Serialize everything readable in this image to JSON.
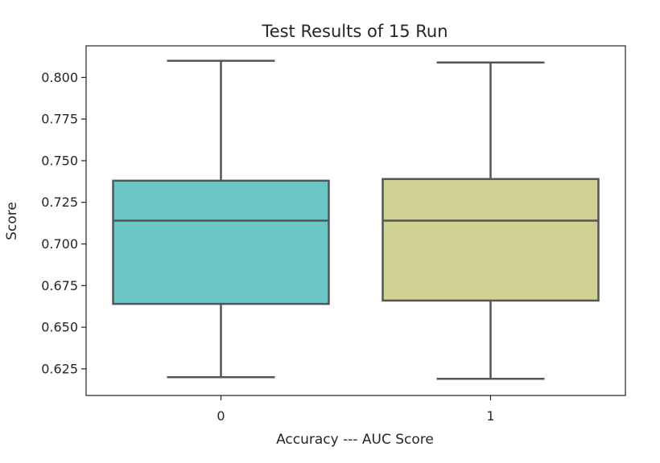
{
  "chart_data": {
    "type": "box",
    "title": "Test Results of 15 Run",
    "xlabel": "Accuracy --- AUC Score",
    "ylabel": "Score",
    "categories": [
      "0",
      "1"
    ],
    "ylim": [
      0.609,
      0.819
    ],
    "yticks": [
      0.625,
      0.65,
      0.675,
      0.7,
      0.725,
      0.75,
      0.775,
      0.8
    ],
    "ytick_labels": [
      "0.625",
      "0.650",
      "0.675",
      "0.700",
      "0.725",
      "0.750",
      "0.775",
      "0.800"
    ],
    "grid": false,
    "boxes": [
      {
        "category": "0",
        "whisker_low": 0.62,
        "q1": 0.664,
        "median": 0.714,
        "q3": 0.738,
        "whisker_high": 0.81,
        "color": "#6cc6c6"
      },
      {
        "category": "1",
        "whisker_low": 0.619,
        "q1": 0.666,
        "median": 0.714,
        "q3": 0.739,
        "whisker_high": 0.809,
        "color": "#cfd293"
      }
    ],
    "line_color": "#555555"
  }
}
